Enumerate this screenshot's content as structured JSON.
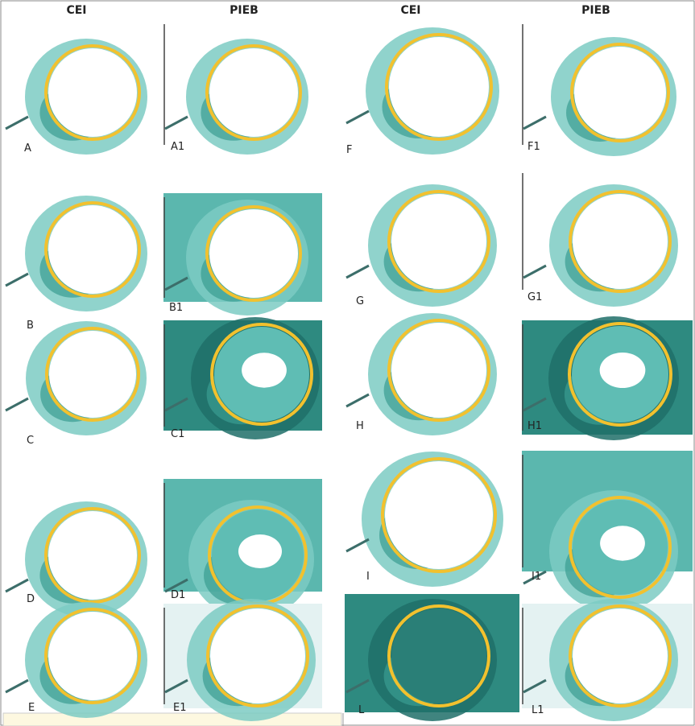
{
  "headers": [
    "CEI",
    "PIEB",
    "CEI",
    "PIEB"
  ],
  "panels": [
    "A",
    "A1",
    "F",
    "F1",
    "B",
    "B1",
    "G",
    "G1",
    "C",
    "C1",
    "H",
    "H1",
    "D",
    "D1",
    "I",
    "I1",
    "E",
    "E1",
    "L",
    "L1"
  ]
}
